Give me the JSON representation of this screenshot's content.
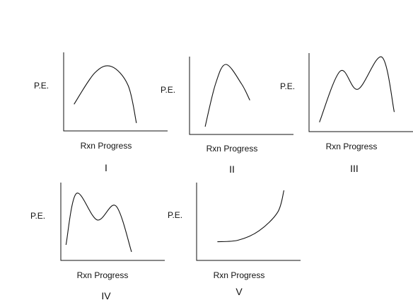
{
  "chart_data": [
    {
      "type": "line",
      "panel_label": "I",
      "ylabel": "P.E.",
      "xlabel": "Rxn Progress",
      "curve": [
        [
          0.1,
          0.34
        ],
        [
          0.3,
          0.74
        ],
        [
          0.46,
          0.82
        ],
        [
          0.62,
          0.58
        ],
        [
          0.7,
          0.1
        ]
      ]
    },
    {
      "type": "line",
      "panel_label": "II",
      "ylabel": "P.E.",
      "xlabel": "Rxn Progress",
      "curve": [
        [
          0.15,
          0.1
        ],
        [
          0.25,
          0.65
        ],
        [
          0.35,
          0.9
        ],
        [
          0.5,
          0.65
        ],
        [
          0.58,
          0.44
        ]
      ]
    },
    {
      "type": "line",
      "panel_label": "III",
      "ylabel": "P.E.",
      "xlabel": "Rxn Progress",
      "curve": [
        [
          0.1,
          0.12
        ],
        [
          0.3,
          0.77
        ],
        [
          0.47,
          0.54
        ],
        [
          0.7,
          0.95
        ],
        [
          0.82,
          0.25
        ]
      ]
    },
    {
      "type": "line",
      "panel_label": "IV",
      "ylabel": "P.E.",
      "xlabel": "Rxn Progress",
      "curve": [
        [
          0.05,
          0.2
        ],
        [
          0.15,
          0.86
        ],
        [
          0.35,
          0.52
        ],
        [
          0.53,
          0.7
        ],
        [
          0.68,
          0.11
        ]
      ]
    },
    {
      "type": "line",
      "panel_label": "V",
      "ylabel": "P.E.",
      "xlabel": "Rxn Progress",
      "curve": [
        [
          0.2,
          0.24
        ],
        [
          0.4,
          0.26
        ],
        [
          0.6,
          0.38
        ],
        [
          0.78,
          0.62
        ],
        [
          0.84,
          0.9
        ]
      ]
    }
  ]
}
